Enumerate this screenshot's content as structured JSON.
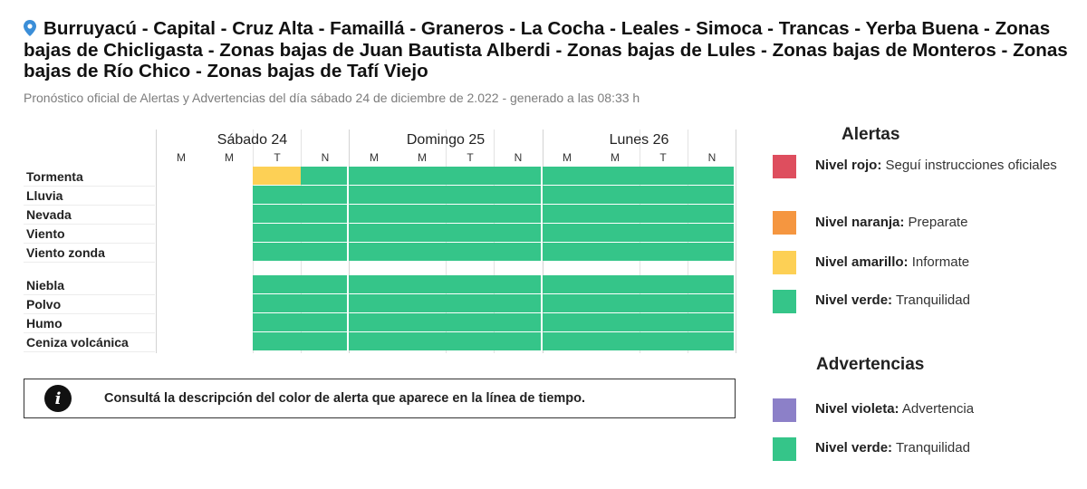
{
  "header": {
    "title": "Burruyacú - Capital - Cruz Alta - Famaillá - Graneros - La Cocha - Leales - Simoca - Trancas - Yerba Buena - Zonas bajas de Chicligasta - Zonas bajas de Juan Bautista Alberdi - Zonas bajas de Lules - Zonas bajas de Monteros - Zonas bajas de Río Chico - Zonas bajas de Tafí Viejo",
    "subtitle": "Pronóstico oficial de Alertas y Advertencias del día sábado 24 de diciembre de 2.022 - generado a las 08:33 h"
  },
  "timeline": {
    "days": [
      {
        "label": "Sábado 24",
        "slots": [
          "M",
          "M",
          "T",
          "N"
        ]
      },
      {
        "label": "Domingo 25",
        "slots": [
          "M",
          "M",
          "T",
          "N"
        ]
      },
      {
        "label": "Lunes 26",
        "slots": [
          "M",
          "M",
          "T",
          "N"
        ]
      }
    ],
    "alert_rows": [
      {
        "label": "Tormenta",
        "levels": [
          null,
          null,
          "amarillo",
          "verde",
          "verde",
          "verde",
          "verde",
          "verde",
          "verde",
          "verde",
          "verde",
          "verde"
        ]
      },
      {
        "label": "Lluvia",
        "levels": [
          null,
          null,
          "verde",
          "verde",
          "verde",
          "verde",
          "verde",
          "verde",
          "verde",
          "verde",
          "verde",
          "verde"
        ]
      },
      {
        "label": "Nevada",
        "levels": [
          null,
          null,
          "verde",
          "verde",
          "verde",
          "verde",
          "verde",
          "verde",
          "verde",
          "verde",
          "verde",
          "verde"
        ]
      },
      {
        "label": "Viento",
        "levels": [
          null,
          null,
          "verde",
          "verde",
          "verde",
          "verde",
          "verde",
          "verde",
          "verde",
          "verde",
          "verde",
          "verde"
        ]
      },
      {
        "label": "Viento zonda",
        "levels": [
          null,
          null,
          "verde",
          "verde",
          "verde",
          "verde",
          "verde",
          "verde",
          "verde",
          "verde",
          "verde",
          "verde"
        ]
      }
    ],
    "warning_rows": [
      {
        "label": "Niebla",
        "levels": [
          null,
          null,
          "verde",
          "verde",
          "verde",
          "verde",
          "verde",
          "verde",
          "verde",
          "verde",
          "verde",
          "verde"
        ]
      },
      {
        "label": "Polvo",
        "levels": [
          null,
          null,
          "verde",
          "verde",
          "verde",
          "verde",
          "verde",
          "verde",
          "verde",
          "verde",
          "verde",
          "verde"
        ]
      },
      {
        "label": "Humo",
        "levels": [
          null,
          null,
          "verde",
          "verde",
          "verde",
          "verde",
          "verde",
          "verde",
          "verde",
          "verde",
          "verde",
          "verde"
        ]
      },
      {
        "label": "Ceniza volcánica",
        "levels": [
          null,
          null,
          "verde",
          "verde",
          "verde",
          "verde",
          "verde",
          "verde",
          "verde",
          "verde",
          "verde",
          "verde"
        ]
      }
    ]
  },
  "info": {
    "icon": "info-icon",
    "icon_glyph": "i",
    "text": "Consultá la descripción del color de alerta que aparece en la línea de tiempo."
  },
  "legend": {
    "alertas_title": "Alertas",
    "alertas": [
      {
        "level": "Nivel rojo:",
        "desc": "Seguí instrucciones oficiales",
        "color": "#de4e5e"
      },
      {
        "level": "Nivel naranja:",
        "desc": "Preparate",
        "color": "#f59640"
      },
      {
        "level": "Nivel amarillo:",
        "desc": "Informate",
        "color": "#fdd055"
      },
      {
        "level": "Nivel verde:",
        "desc": "Tranquilidad",
        "color": "#35c589"
      }
    ],
    "advertencias_title": "Advertencias",
    "advertencias": [
      {
        "level": "Nivel violeta:",
        "desc": "Advertencia",
        "color": "#8c80c8"
      },
      {
        "level": "Nivel verde:",
        "desc": "Tranquilidad",
        "color": "#35c589"
      }
    ]
  },
  "colors": {
    "verde": "#35c589",
    "amarillo": "#fdd055",
    "pin": "#3b8ed8"
  }
}
